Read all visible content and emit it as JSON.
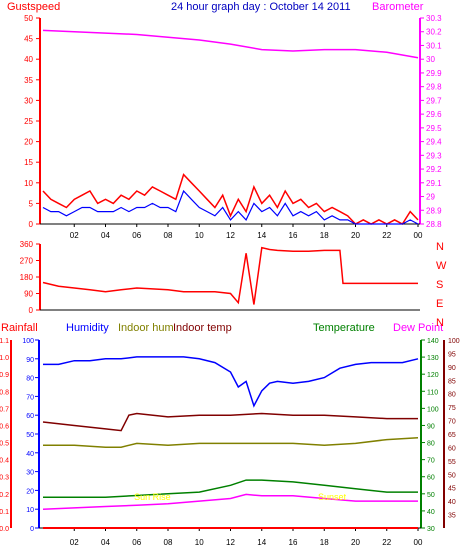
{
  "top_panel": {
    "title": "24 hour graph day : October 14 2011",
    "left_label": "Gustspeed",
    "right_label": "Barometer",
    "left_ticks": [
      "0",
      "5",
      "10",
      "15",
      "20",
      "25",
      "30",
      "35",
      "40",
      "45",
      "50"
    ],
    "right_ticks": [
      "28.8",
      "28.9",
      "29",
      "29.1",
      "29.2",
      "29.3",
      "29.4",
      "29.5",
      "29.6",
      "29.7",
      "29.8",
      "29.9",
      "30",
      "30.1",
      "30.2",
      "30.3"
    ]
  },
  "mid_panel": {
    "left_ticks": [
      "0",
      "90",
      "180",
      "270",
      "360"
    ],
    "compass_letters": [
      "N",
      "W",
      "S",
      "E",
      "N"
    ]
  },
  "bottom_panel": {
    "labels": {
      "rainfall": "Rainfall",
      "humidity": "Humidity",
      "indoor_hum": "Indoor hum",
      "indoor_temp": "Indoor temp",
      "temperature": "Temperature",
      "dew_point": "Dew Point"
    },
    "rain_ticks": [
      "0.0",
      "0.1",
      "0.2",
      "0.3",
      "0.4",
      "0.5",
      "0.6",
      "0.7",
      "0.8",
      "0.9",
      "1.0",
      "1.1"
    ],
    "humidity_ticks": [
      "0",
      "10",
      "20",
      "30",
      "40",
      "50",
      "60",
      "70",
      "80",
      "90",
      "100"
    ],
    "temp_ticks": [
      "30",
      "40",
      "50",
      "60",
      "70",
      "80",
      "90",
      "100",
      "110",
      "120",
      "130",
      "140"
    ],
    "dew_ticks": [
      "35",
      "40",
      "45",
      "50",
      "55",
      "60",
      "65",
      "70",
      "75",
      "80",
      "85",
      "90",
      "95",
      "100"
    ],
    "annotations": [
      "Sun Rise",
      "Sunset"
    ]
  },
  "x_ticks": [
    "02",
    "04",
    "06",
    "08",
    "10",
    "12",
    "14",
    "16",
    "18",
    "20",
    "22",
    "00"
  ],
  "colors": {
    "gust": "#ff0000",
    "wind": "#0000ff",
    "barometer": "#ff00ff",
    "title": "#0000c0",
    "direction": "#ff0000",
    "humidity": "#0000ff",
    "indoor_hum": "#808000",
    "indoor_temp": "#800000",
    "temperature": "#008000",
    "dew_point": "#ff00ff",
    "rainfall": "#ff0000",
    "annotation": "#ffff00",
    "grid": "#c0c0c0"
  },
  "chart_data": [
    {
      "type": "line",
      "title": "24 hour graph day : October 14 2011",
      "x_unit": "hour",
      "xlim": [
        0,
        24
      ],
      "ylim": [
        0,
        50
      ],
      "y2lim": [
        28.8,
        30.3
      ],
      "series": [
        {
          "name": "Gustspeed",
          "axis": "left",
          "x": [
            0,
            0.5,
            1,
            1.5,
            2,
            2.5,
            3,
            3.5,
            4,
            4.5,
            5,
            5.5,
            6,
            6.5,
            7,
            7.5,
            8,
            8.5,
            9,
            9.5,
            10,
            10.5,
            11,
            11.5,
            12,
            12.5,
            13,
            13.5,
            14,
            14.5,
            15,
            15.5,
            16,
            16.5,
            17,
            17.5,
            18,
            18.5,
            19,
            19.5,
            20,
            20.5,
            21,
            21.5,
            22,
            22.5,
            23,
            23.5,
            24
          ],
          "values": [
            8,
            6,
            5,
            4,
            6,
            7,
            8,
            5,
            6,
            5,
            7,
            6,
            8,
            7,
            9,
            8,
            7,
            6,
            12,
            10,
            8,
            6,
            4,
            7,
            2,
            6,
            3,
            9,
            5,
            7,
            4,
            8,
            5,
            6,
            4,
            5,
            3,
            4,
            3,
            2,
            0,
            1,
            0,
            1,
            0,
            1,
            0,
            3,
            1
          ]
        },
        {
          "name": "Wind speed",
          "axis": "left",
          "x": [
            0,
            0.5,
            1,
            1.5,
            2,
            2.5,
            3,
            3.5,
            4,
            4.5,
            5,
            5.5,
            6,
            6.5,
            7,
            7.5,
            8,
            8.5,
            9,
            9.5,
            10,
            10.5,
            11,
            11.5,
            12,
            12.5,
            13,
            13.5,
            14,
            14.5,
            15,
            15.5,
            16,
            16.5,
            17,
            17.5,
            18,
            18.5,
            19,
            19.5,
            20,
            20.5,
            21,
            21.5,
            22,
            22.5,
            23,
            23.5,
            24
          ],
          "values": [
            4,
            3,
            3,
            2,
            3,
            4,
            4,
            3,
            3,
            3,
            4,
            3,
            4,
            4,
            5,
            4,
            4,
            3,
            8,
            6,
            4,
            3,
            2,
            4,
            1,
            3,
            1,
            5,
            3,
            4,
            2,
            5,
            2,
            3,
            2,
            3,
            1,
            2,
            1,
            1,
            0,
            0,
            0,
            0,
            0,
            0,
            0,
            1,
            0
          ]
        },
        {
          "name": "Barometer",
          "axis": "right",
          "x": [
            0,
            2,
            4,
            6,
            8,
            10,
            12,
            14,
            16,
            18,
            20,
            22,
            24
          ],
          "values": [
            30.21,
            30.2,
            30.19,
            30.18,
            30.16,
            30.14,
            30.11,
            30.07,
            30.06,
            30.07,
            30.07,
            30.05,
            30.01
          ]
        }
      ]
    },
    {
      "type": "line",
      "title": "Wind direction",
      "x_unit": "hour",
      "xlim": [
        0,
        24
      ],
      "ylim": [
        0,
        360
      ],
      "series": [
        {
          "name": "Direction",
          "x": [
            0,
            1,
            2,
            3,
            4,
            5,
            6,
            7,
            8,
            9,
            10,
            11,
            12,
            12.5,
            13,
            13.5,
            14,
            14.5,
            15,
            16,
            17,
            18,
            19,
            19.2,
            20,
            21,
            22,
            23,
            24
          ],
          "values": [
            150,
            130,
            120,
            110,
            100,
            110,
            120,
            115,
            110,
            100,
            100,
            100,
            90,
            40,
            310,
            30,
            340,
            330,
            325,
            320,
            320,
            325,
            325,
            145,
            145,
            145,
            145,
            145,
            145
          ]
        }
      ]
    },
    {
      "type": "line",
      "title": "",
      "x_unit": "hour",
      "xlim": [
        0,
        24
      ],
      "series": [
        {
          "name": "Humidity",
          "axis": "humidity",
          "x": [
            0,
            1,
            2,
            3,
            4,
            5,
            6,
            7,
            8,
            9,
            10,
            11,
            12,
            12.5,
            13,
            13.5,
            14,
            14.5,
            15,
            16,
            17,
            18,
            19,
            20,
            21,
            22,
            23,
            24
          ],
          "values": [
            87,
            87,
            89,
            89,
            90,
            90,
            91,
            91,
            91,
            91,
            90,
            88,
            83,
            75,
            78,
            65,
            73,
            77,
            78,
            77,
            78,
            80,
            85,
            87,
            88,
            88,
            88,
            90
          ]
        },
        {
          "name": "Indoor hum",
          "axis": "humidity",
          "x": [
            0,
            2,
            4,
            5,
            6,
            8,
            10,
            12,
            14,
            16,
            18,
            20,
            22,
            24
          ],
          "values": [
            44,
            44,
            43,
            43,
            45,
            44,
            45,
            45,
            45,
            45,
            44,
            45,
            47,
            48
          ]
        },
        {
          "name": "Indoor temp",
          "axis": "temp",
          "x": [
            0,
            2,
            4,
            5,
            5.5,
            6,
            8,
            10,
            12,
            14,
            16,
            18,
            20,
            22,
            24
          ],
          "values": [
            92,
            90,
            88,
            87,
            96,
            97,
            95,
            96,
            96,
            97,
            96,
            96,
            95,
            94,
            94
          ]
        },
        {
          "name": "Temperature",
          "axis": "temp",
          "x": [
            0,
            2,
            4,
            6,
            8,
            10,
            12,
            13,
            14,
            16,
            18,
            20,
            22,
            24
          ],
          "values": [
            48,
            48,
            48,
            49,
            50,
            51,
            55,
            58,
            58,
            57,
            55,
            53,
            51,
            51
          ]
        },
        {
          "name": "Dew Point",
          "axis": "dew",
          "x": [
            0,
            2,
            4,
            6,
            8,
            10,
            12,
            13,
            14,
            16,
            18,
            20,
            22,
            24
          ],
          "values": [
            37,
            37.5,
            38,
            38.5,
            39,
            40,
            41,
            42.5,
            42,
            42,
            41,
            40,
            40,
            40
          ]
        },
        {
          "name": "Rainfall",
          "axis": "rain",
          "x": [
            0,
            24
          ],
          "values": [
            0,
            0
          ]
        }
      ],
      "annotations": [
        {
          "text": "Sun Rise",
          "x": 7
        },
        {
          "text": "Sunset",
          "x": 18.5
        }
      ]
    }
  ]
}
